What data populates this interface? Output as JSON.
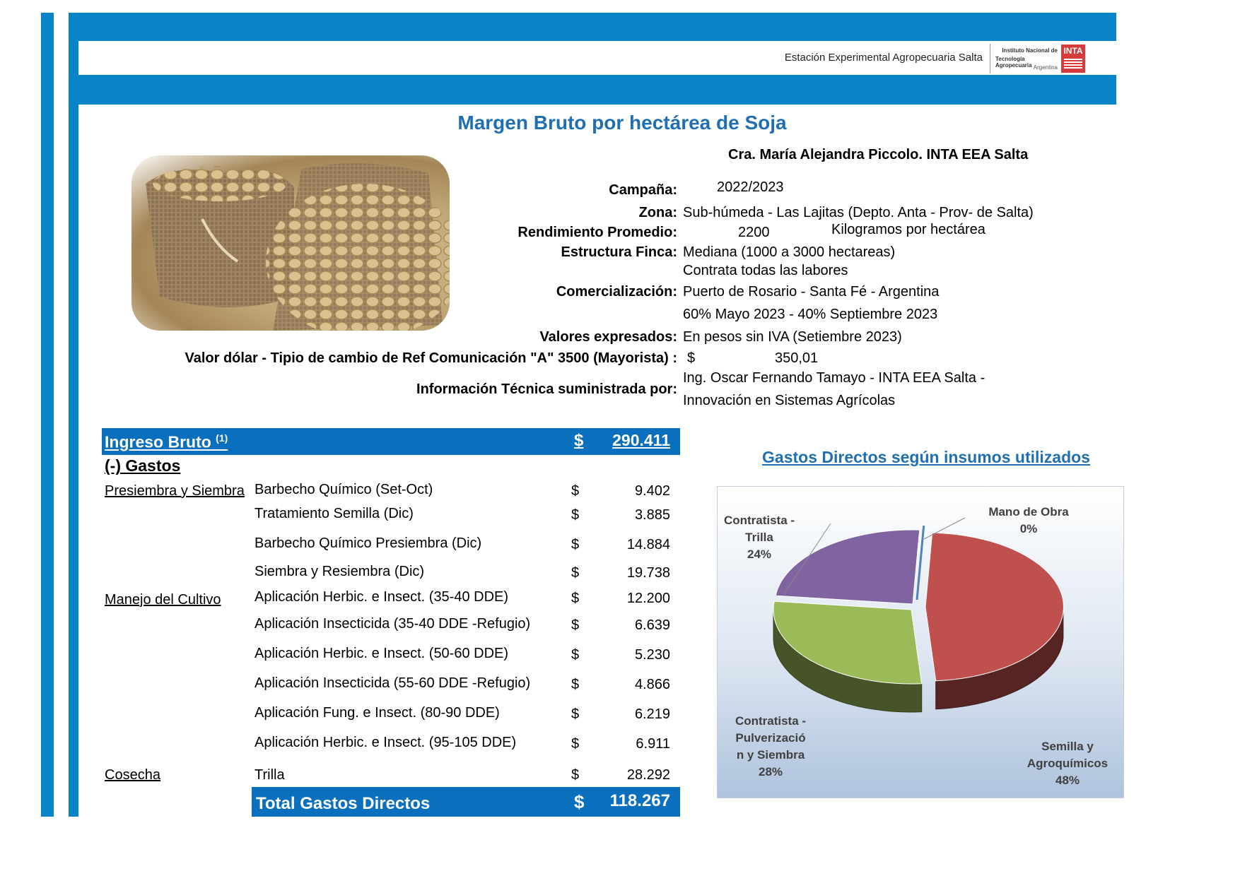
{
  "header": {
    "station": "Estación Experimental Agropecuaria Salta",
    "logo_lines": [
      "Instituto Nacional de",
      "Tecnología Agropecuaria",
      "Argentina"
    ],
    "logo_mark": "INTA"
  },
  "title": "Margen Bruto por hectárea de Soja",
  "author": "Cra. María Alejandra Piccolo. INTA EEA Salta",
  "image": {
    "icon": "soybean-sacks-photo"
  },
  "info": {
    "campana_label": "Campaña:",
    "campana_value": "2022/2023",
    "zona_label": "Zona:",
    "zona_value": "Sub-húmeda - Las Lajitas (Depto. Anta - Prov- de Salta)",
    "rend_label": "Rendimiento Promedio:",
    "rend_value": "2200",
    "rend_unit": "Kilogramos por hectárea",
    "estructura_label": "Estructura Finca:",
    "estructura_value1": "Mediana  (1000 a 3000 hectareas)",
    "estructura_value2": "Contrata todas las labores",
    "comerc_label": "Comercialización:",
    "comerc_value1": "Puerto de Rosario - Santa Fé - Argentina",
    "comerc_value2": "60% Mayo 2023 - 40% Septiembre 2023",
    "valores_label": "Valores expresados:",
    "valores_value": "En pesos sin IVA (Setiembre 2023)",
    "dolar_label": "Valor dólar - Tipio de cambio de Ref Comunicación \"A\" 3500 (Mayorista)  :",
    "dolar_symbol": "$",
    "dolar_value": "350,01",
    "tecnica_label": "Información Técnica suministrada por:",
    "tecnica_value1": "Ing. Oscar Fernando Tamayo - INTA EEA Salta -",
    "tecnica_value2": "Innovación en Sistemas Agrícolas"
  },
  "ingreso": {
    "label": "Ingreso Bruto",
    "sup": "(1)",
    "symbol": "$",
    "value": "290.411"
  },
  "gastos_title": "(-) Gastos",
  "categories": {
    "presiembra": "Presiembra y Siembra",
    "manejo": "Manejo del Cultivo",
    "cosecha": "Cosecha"
  },
  "items": [
    {
      "label": "Barbecho Químico (Set-Oct)",
      "symbol": "$",
      "value": "9.402"
    },
    {
      "label": "Tratamiento Semilla (Dic)",
      "symbol": "$",
      "value": "3.885"
    },
    {
      "label": "Barbecho Químico Presiembra (Dic)",
      "symbol": "$",
      "value": "14.884"
    },
    {
      "label": "Siembra y Resiembra (Dic)",
      "symbol": "$",
      "value": "19.738"
    },
    {
      "label": "Aplicación Herbic. e Insect. (35-40 DDE)",
      "symbol": "$",
      "value": "12.200"
    },
    {
      "label": "Aplicación Insecticida (35-40 DDE -Refugio)",
      "symbol": "$",
      "value": "6.639"
    },
    {
      "label": "Aplicación Herbic. e Insect. (50-60 DDE)",
      "symbol": "$",
      "value": "5.230"
    },
    {
      "label": "Aplicación Insecticida (55-60 DDE -Refugio)",
      "symbol": "$",
      "value": "4.866"
    },
    {
      "label": "Aplicación Fung. e Insect. (80-90 DDE)",
      "symbol": "$",
      "value": "6.219"
    },
    {
      "label": "Aplicación Herbic. e Insect. (95-105 DDE)",
      "symbol": "$",
      "value": "6.911"
    },
    {
      "label": "Trilla",
      "symbol": "$",
      "value": "28.292"
    }
  ],
  "total": {
    "label": "Total Gastos Directos",
    "symbol": "$",
    "value": "118.267"
  },
  "colors": {
    "brand_blue": "#0a84c9",
    "bar_blue": "#0a6fbd",
    "title_blue": "#1f6fb2"
  },
  "chart_data": {
    "type": "pie",
    "title": "Gastos Directos según insumos utilizados",
    "slices": [
      {
        "label": "Semilla y Agroquímicos",
        "value": 48,
        "display": "48%",
        "color": "#c0504d"
      },
      {
        "label": "Contratista - Pulverización y Siembra",
        "value": 28,
        "display": "28%",
        "color": "#9bbb59"
      },
      {
        "label": "Contratista - Trilla",
        "value": 24,
        "display": "24%",
        "color": "#8064a2"
      },
      {
        "label": "Mano de Obra",
        "value": 0,
        "display": "0%",
        "color": "#4f81bd"
      }
    ],
    "label_lines": {
      "semilla": [
        "Semilla y",
        "Agroquímicos",
        "48%"
      ],
      "pulv": [
        "Contratista -",
        "Pulverizació",
        "n y Siembra",
        "28%"
      ],
      "trilla": [
        "Contratista -",
        "Trilla",
        "24%"
      ],
      "mano": [
        "Mano de Obra",
        "0%"
      ]
    }
  }
}
